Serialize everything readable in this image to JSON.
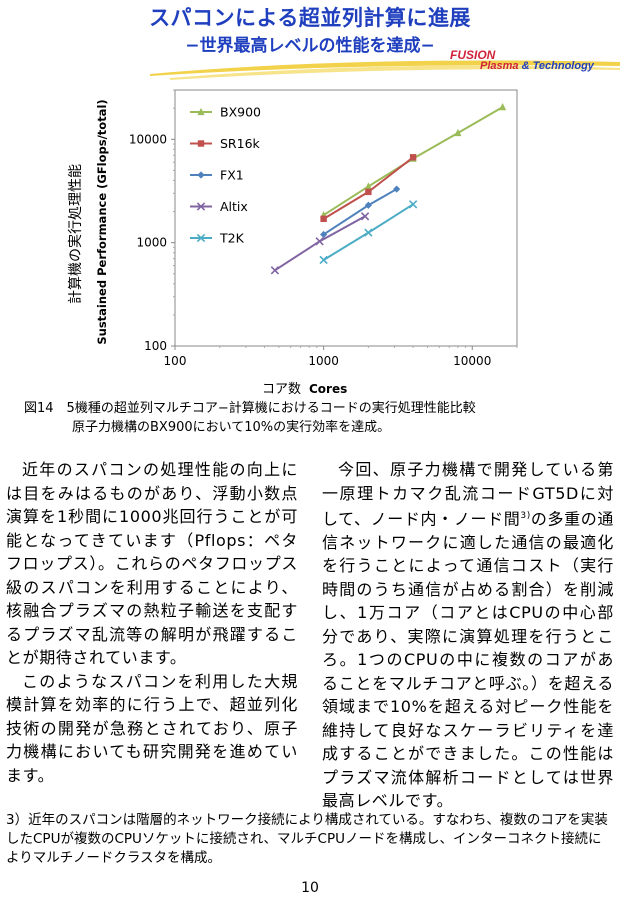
{
  "header": {
    "title": "スパコンによる超並列計算に進展",
    "subtitle": "−世界最高レベルの性能を達成−",
    "logo_fusion": "FUSION",
    "logo_plasma": "Plasma",
    "logo_amp": " & Technology"
  },
  "chart_data": {
    "type": "line",
    "xscale": "log",
    "yscale": "log",
    "xlim": [
      100,
      20000
    ],
    "ylim": [
      100,
      30000
    ],
    "xticks": [
      "100",
      "1000",
      "10000"
    ],
    "yticks": [
      "100",
      "1000",
      "10000"
    ],
    "xlabel_jp": "コア数",
    "xlabel_en": "Cores",
    "ylabel_jp": "計算機の実行処理性能",
    "ylabel_en": "Sustained Performance (GFlops/total)",
    "grid": false,
    "legend_position": "top-left",
    "series": [
      {
        "name": "BX900",
        "color": "#9bbb59",
        "marker": "triangle",
        "points": [
          [
            1000,
            1850
          ],
          [
            2000,
            3500
          ],
          [
            4000,
            6500
          ],
          [
            8000,
            11500
          ],
          [
            16000,
            20500
          ]
        ]
      },
      {
        "name": "SR16k",
        "color": "#c0504d",
        "marker": "square",
        "points": [
          [
            1000,
            1700
          ],
          [
            2000,
            3100
          ],
          [
            4000,
            6700
          ]
        ]
      },
      {
        "name": "FX1",
        "color": "#4f81bd",
        "marker": "diamond",
        "points": [
          [
            1000,
            1200
          ],
          [
            2000,
            2300
          ],
          [
            3100,
            3300
          ]
        ]
      },
      {
        "name": "Altix",
        "color": "#8064a2",
        "marker": "x",
        "points": [
          [
            470,
            540
          ],
          [
            940,
            1030
          ],
          [
            1900,
            1800
          ]
        ]
      },
      {
        "name": "T2K",
        "color": "#4bacc6",
        "marker": "x",
        "points": [
          [
            1000,
            680
          ],
          [
            2000,
            1250
          ],
          [
            4000,
            2350
          ]
        ]
      }
    ]
  },
  "caption": {
    "line1": "図14　5機種の超並列マルチコア−計算機におけるコードの実行処理性能比較",
    "line2": "原子力機構のBX900において10%の実行効率を達成。"
  },
  "body": {
    "left_p1": "近年のスパコンの処理性能の向上には目をみはるものがあり、浮動小数点演算を1秒間に1000兆回行うことが可能となってきています（Pflops：ペタフロップス）。これらのペタフロップス級のスパコンを利用することにより、核融合プラズマの熱粒子輸送を支配するプラズマ乱流等の解明が飛躍することが期待されています。",
    "left_p2": "このようなスパコンを利用した大規模計算を効率的に行う上で、超並列化技術の開発が急務とされており、原子力機構においても研究開発を進めています。",
    "right_p1a": "今回、原子力機構で開発している第一原理トカマク乱流コードGT5Dに対して、ノード内・ノード間",
    "right_p1_sup": "3)",
    "right_p1b": "の多重の通信ネットワークに適した通信の最適化を行うことによって通信コスト（実行時間のうち通信が占める割合）を削減し、1万コア（コアとはCPUの中心部分であり、実際に演算処理を行うところ。1つのCPUの中に複数のコアがあることをマルチコアと呼ぶ。）を超える領域まで10%を超える対ピーク性能を維持して良好なスケーラビリティを達成することができました。この性能はプラズマ流体解析コードとしては世界最高レベルです。"
  },
  "footnote": {
    "text": "3）近年のスパコンは階層的ネットワーク接続により構成されている。すなわち、複数のコアを実装したCPUが複数のCPUソケットに接続され、マルチCPUノードを構成し、インターコネクト接続によりマルチノードクラスタを構成。"
  },
  "page_number": "10"
}
